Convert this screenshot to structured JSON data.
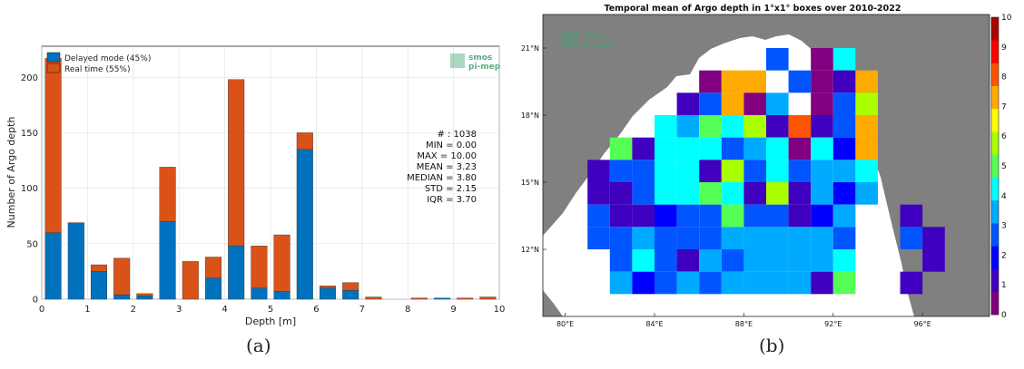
{
  "colors": {
    "delayed": "#0072BD",
    "realtime": "#D95319",
    "land": "#808080",
    "logo": "#3aa36d"
  },
  "panel_a": {
    "caption": "(a)",
    "stats": [
      "# : 1038",
      "MIN = 0.00",
      "MAX = 10.00",
      "MEAN = 3.23",
      "MEDIAN = 3.80",
      "STD = 2.15",
      "IQR = 3.70"
    ],
    "logo": [
      "smos",
      "pi-mep"
    ]
  },
  "panel_b": {
    "caption": "(b)",
    "lat_ticks": [
      "21°N",
      "18°N",
      "15°N",
      "12°N"
    ],
    "lon_ticks": [
      "80°E",
      "84°E",
      "88°E",
      "92°E",
      "96°E"
    ],
    "colorbar_ticks": [
      "0",
      "1",
      "2",
      "3",
      "4",
      "5",
      "6",
      "7",
      "8",
      "9",
      "10"
    ],
    "colorbar_colors": [
      "#800080",
      "#3f00bf",
      "#0000ff",
      "#0055ff",
      "#00aaff",
      "#00ffff",
      "#55ff55",
      "#aaff00",
      "#ffff00",
      "#ffaa00",
      "#ff5500",
      "#ff0000",
      "#aa0000"
    ],
    "logo": [
      "smos",
      "pi-mep"
    ]
  },
  "chart_data": [
    {
      "type": "bar",
      "stacked": true,
      "title": "",
      "xlabel": "Depth [m]",
      "ylabel": "Number of Argo depth",
      "xlim": [
        0,
        10
      ],
      "ylim": [
        0,
        228
      ],
      "xticks": [
        0,
        1,
        2,
        3,
        4,
        5,
        6,
        7,
        8,
        9,
        10
      ],
      "yticks": [
        0,
        50,
        100,
        150,
        200
      ],
      "grid": true,
      "legend": "top-left",
      "x": [
        0.25,
        0.75,
        1.25,
        1.75,
        2.25,
        2.75,
        3.25,
        3.75,
        4.25,
        4.75,
        5.25,
        5.75,
        6.25,
        6.75,
        7.25,
        7.75,
        8.25,
        8.75,
        9.25,
        9.75
      ],
      "series": [
        {
          "name": "Delayed mode (45%)",
          "values": [
            60,
            68,
            25,
            4,
            3,
            70,
            0,
            19,
            48,
            10,
            7,
            135,
            10,
            8,
            0,
            0,
            0,
            1,
            0,
            0
          ]
        },
        {
          "name": "Real time (55%)",
          "values": [
            157,
            1,
            6,
            33,
            2,
            49,
            34,
            19,
            150,
            38,
            51,
            15,
            2,
            7,
            2,
            0,
            1,
            0,
            1,
            2
          ]
        }
      ]
    },
    {
      "type": "heatmap",
      "title": "Temporal mean of Argo depth in 1°x1° boxes over 2010-2022",
      "xlabel": "",
      "ylabel": "",
      "colorbar_range": [
        0,
        10
      ],
      "lon_range": [
        79,
        99
      ],
      "lat_range": [
        9,
        22.5
      ],
      "cells": [
        {
          "lon": 89,
          "lat": 20,
          "v": 3
        },
        {
          "lon": 91,
          "lat": 20,
          "v": 0.5
        },
        {
          "lon": 92,
          "lat": 20,
          "v": 4
        },
        {
          "lon": 86,
          "lat": 19,
          "v": 0.5
        },
        {
          "lon": 87,
          "lat": 19,
          "v": 7
        },
        {
          "lon": 88,
          "lat": 19,
          "v": 7
        },
        {
          "lon": 90,
          "lat": 19,
          "v": 3
        },
        {
          "lon": 91,
          "lat": 19,
          "v": 0.5
        },
        {
          "lon": 92,
          "lat": 19,
          "v": 1
        },
        {
          "lon": 93,
          "lat": 19,
          "v": 7
        },
        {
          "lon": 85,
          "lat": 18,
          "v": 1.5
        },
        {
          "lon": 86,
          "lat": 18,
          "v": 2.5
        },
        {
          "lon": 87,
          "lat": 18,
          "v": 7
        },
        {
          "lon": 88,
          "lat": 18,
          "v": 0.5
        },
        {
          "lon": 89,
          "lat": 18,
          "v": 3.5
        },
        {
          "lon": 91,
          "lat": 18,
          "v": 0.5
        },
        {
          "lon": 92,
          "lat": 18,
          "v": 3
        },
        {
          "lon": 93,
          "lat": 18,
          "v": 6
        },
        {
          "lon": 84,
          "lat": 17,
          "v": 4
        },
        {
          "lon": 85,
          "lat": 17,
          "v": 3.5
        },
        {
          "lon": 86,
          "lat": 17,
          "v": 5
        },
        {
          "lon": 87,
          "lat": 17,
          "v": 4
        },
        {
          "lon": 88,
          "lat": 17,
          "v": 6
        },
        {
          "lon": 89,
          "lat": 17,
          "v": 0.8
        },
        {
          "lon": 90,
          "lat": 17,
          "v": 8
        },
        {
          "lon": 91,
          "lat": 17,
          "v": 1.5
        },
        {
          "lon": 92,
          "lat": 17,
          "v": 3
        },
        {
          "lon": 93,
          "lat": 17,
          "v": 7
        },
        {
          "lon": 82,
          "lat": 16,
          "v": 5
        },
        {
          "lon": 83,
          "lat": 16,
          "v": 1.5
        },
        {
          "lon": 84,
          "lat": 16,
          "v": 4.5
        },
        {
          "lon": 85,
          "lat": 16,
          "v": 4
        },
        {
          "lon": 86,
          "lat": 16,
          "v": 4
        },
        {
          "lon": 87,
          "lat": 16,
          "v": 2.5
        },
        {
          "lon": 88,
          "lat": 16,
          "v": 3.5
        },
        {
          "lon": 89,
          "lat": 16,
          "v": 4.5
        },
        {
          "lon": 90,
          "lat": 16,
          "v": 0.5
        },
        {
          "lon": 91,
          "lat": 16,
          "v": 4
        },
        {
          "lon": 92,
          "lat": 16,
          "v": 2
        },
        {
          "lon": 93,
          "lat": 16,
          "v": 7
        },
        {
          "lon": 81,
          "lat": 15,
          "v": 1.5
        },
        {
          "lon": 82,
          "lat": 15,
          "v": 3
        },
        {
          "lon": 83,
          "lat": 15,
          "v": 3
        },
        {
          "lon": 84,
          "lat": 15,
          "v": 4.5
        },
        {
          "lon": 85,
          "lat": 15,
          "v": 4
        },
        {
          "lon": 86,
          "lat": 15,
          "v": 1.5
        },
        {
          "lon": 87,
          "lat": 15,
          "v": 6
        },
        {
          "lon": 88,
          "lat": 15,
          "v": 3
        },
        {
          "lon": 89,
          "lat": 15,
          "v": 4
        },
        {
          "lon": 90,
          "lat": 15,
          "v": 3
        },
        {
          "lon": 91,
          "lat": 15,
          "v": 3.5
        },
        {
          "lon": 92,
          "lat": 15,
          "v": 3.5
        },
        {
          "lon": 93,
          "lat": 15,
          "v": 4
        },
        {
          "lon": 81,
          "lat": 14,
          "v": 1.5
        },
        {
          "lon": 82,
          "lat": 14,
          "v": 1
        },
        {
          "lon": 83,
          "lat": 14,
          "v": 3
        },
        {
          "lon": 84,
          "lat": 14,
          "v": 4.5
        },
        {
          "lon": 85,
          "lat": 14,
          "v": 4.5
        },
        {
          "lon": 86,
          "lat": 14,
          "v": 5
        },
        {
          "lon": 87,
          "lat": 14,
          "v": 4.5
        },
        {
          "lon": 88,
          "lat": 14,
          "v": 1
        },
        {
          "lon": 89,
          "lat": 14,
          "v": 5.5
        },
        {
          "lon": 90,
          "lat": 14,
          "v": 1.5
        },
        {
          "lon": 91,
          "lat": 14,
          "v": 3.5
        },
        {
          "lon": 92,
          "lat": 14,
          "v": 2
        },
        {
          "lon": 93,
          "lat": 14,
          "v": 3.5
        },
        {
          "lon": 81,
          "lat": 13,
          "v": 2.5
        },
        {
          "lon": 82,
          "lat": 13,
          "v": 1.5
        },
        {
          "lon": 83,
          "lat": 13,
          "v": 1.5
        },
        {
          "lon": 84,
          "lat": 13,
          "v": 2
        },
        {
          "lon": 85,
          "lat": 13,
          "v": 3
        },
        {
          "lon": 86,
          "lat": 13,
          "v": 2.5
        },
        {
          "lon": 87,
          "lat": 13,
          "v": 5
        },
        {
          "lon": 88,
          "lat": 13,
          "v": 3
        },
        {
          "lon": 89,
          "lat": 13,
          "v": 3
        },
        {
          "lon": 90,
          "lat": 13,
          "v": 1.5
        },
        {
          "lon": 91,
          "lat": 13,
          "v": 2
        },
        {
          "lon": 92,
          "lat": 13,
          "v": 3.5
        },
        {
          "lon": 95,
          "lat": 13,
          "v": 1
        },
        {
          "lon": 81,
          "lat": 12,
          "v": 2.5
        },
        {
          "lon": 82,
          "lat": 12,
          "v": 2.5
        },
        {
          "lon": 83,
          "lat": 12,
          "v": 3.5
        },
        {
          "lon": 84,
          "lat": 12,
          "v": 2.5
        },
        {
          "lon": 85,
          "lat": 12,
          "v": 3
        },
        {
          "lon": 86,
          "lat": 12,
          "v": 3
        },
        {
          "lon": 87,
          "lat": 12,
          "v": 3.5
        },
        {
          "lon": 88,
          "lat": 12,
          "v": 3.5
        },
        {
          "lon": 89,
          "lat": 12,
          "v": 3.5
        },
        {
          "lon": 90,
          "lat": 12,
          "v": 3.5
        },
        {
          "lon": 91,
          "lat": 12,
          "v": 3.5
        },
        {
          "lon": 92,
          "lat": 12,
          "v": 2.5
        },
        {
          "lon": 95,
          "lat": 12,
          "v": 3
        },
        {
          "lon": 96,
          "lat": 12,
          "v": 1
        },
        {
          "lon": 82,
          "lat": 11,
          "v": 3
        },
        {
          "lon": 83,
          "lat": 11,
          "v": 4.5
        },
        {
          "lon": 84,
          "lat": 11,
          "v": 2.5
        },
        {
          "lon": 85,
          "lat": 11,
          "v": 1.5
        },
        {
          "lon": 86,
          "lat": 11,
          "v": 3.5
        },
        {
          "lon": 87,
          "lat": 11,
          "v": 2.5
        },
        {
          "lon": 88,
          "lat": 11,
          "v": 3.5
        },
        {
          "lon": 89,
          "lat": 11,
          "v": 3.5
        },
        {
          "lon": 90,
          "lat": 11,
          "v": 3.5
        },
        {
          "lon": 91,
          "lat": 11,
          "v": 3.5
        },
        {
          "lon": 92,
          "lat": 11,
          "v": 4
        },
        {
          "lon": 96,
          "lat": 11,
          "v": 1
        },
        {
          "lon": 82,
          "lat": 10,
          "v": 3.5
        },
        {
          "lon": 83,
          "lat": 10,
          "v": 2
        },
        {
          "lon": 84,
          "lat": 10,
          "v": 3
        },
        {
          "lon": 85,
          "lat": 10,
          "v": 3.5
        },
        {
          "lon": 86,
          "lat": 10,
          "v": 2.5
        },
        {
          "lon": 87,
          "lat": 10,
          "v": 3.5
        },
        {
          "lon": 88,
          "lat": 10,
          "v": 3.5
        },
        {
          "lon": 89,
          "lat": 10,
          "v": 3.5
        },
        {
          "lon": 90,
          "lat": 10,
          "v": 3.5
        },
        {
          "lon": 91,
          "lat": 10,
          "v": 0.8
        },
        {
          "lon": 92,
          "lat": 10,
          "v": 5
        },
        {
          "lon": 95,
          "lat": 10,
          "v": 1
        }
      ]
    }
  ]
}
